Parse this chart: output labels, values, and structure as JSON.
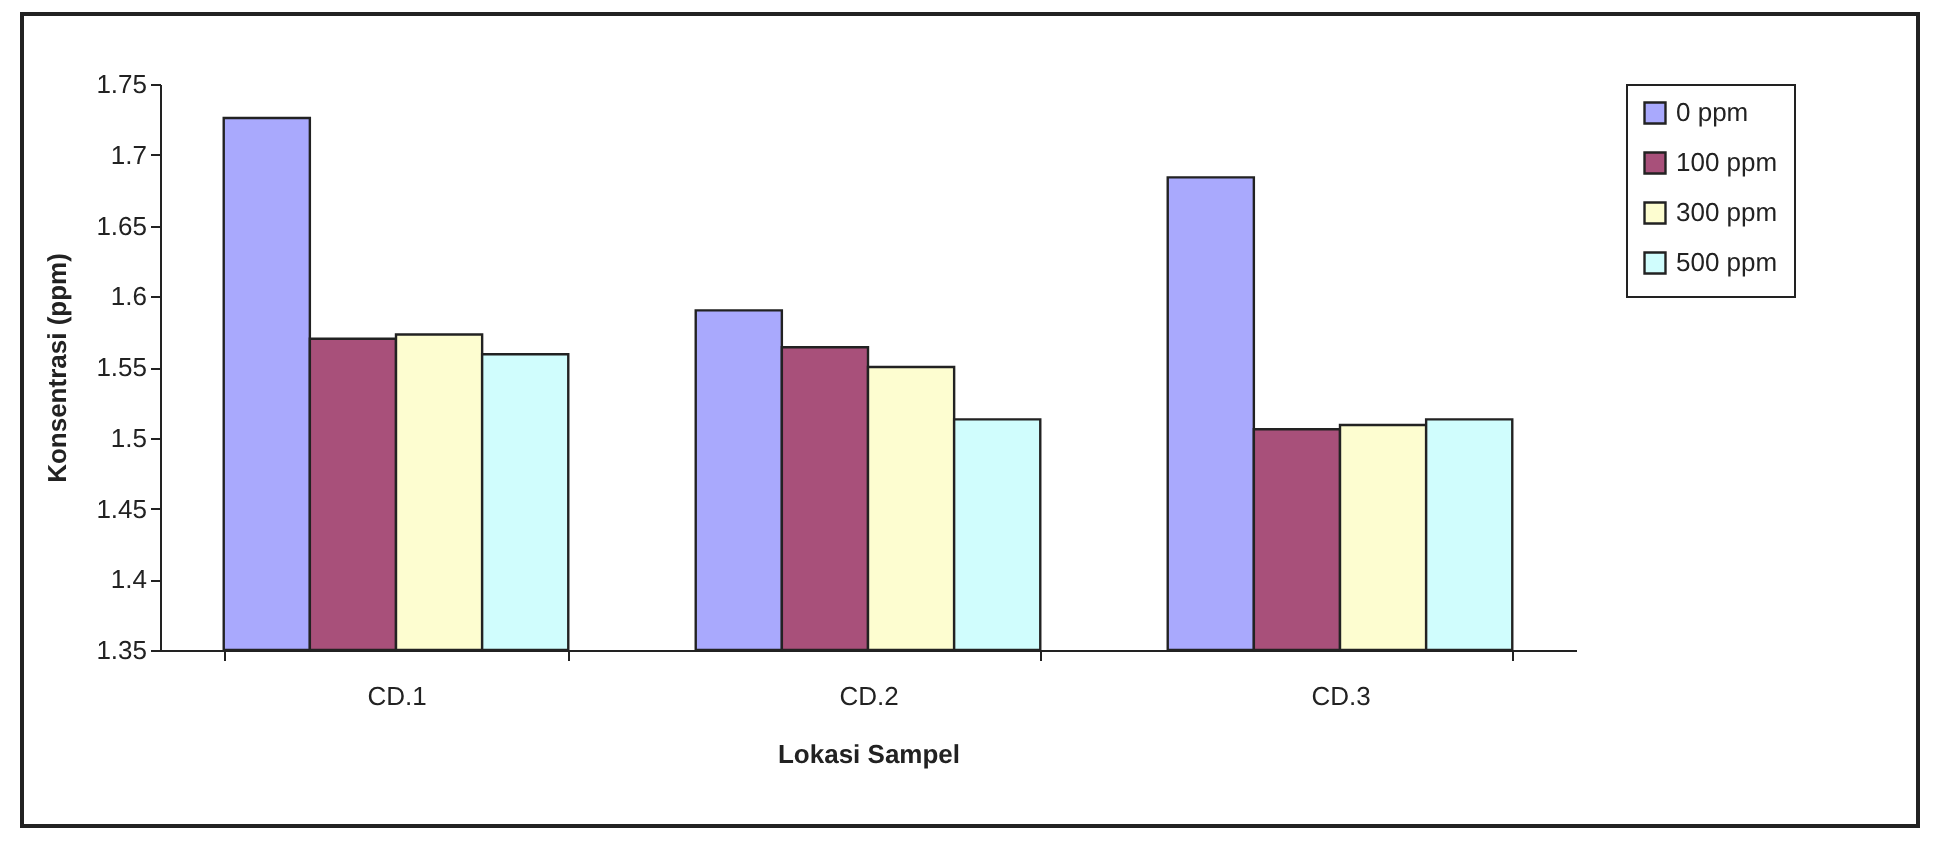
{
  "chart_data": {
    "type": "bar",
    "xlabel": "Lokasi Sampel",
    "ylabel": "Konsentrasi (ppm)",
    "categories": [
      "CD.1",
      "CD.2",
      "CD.3"
    ],
    "series": [
      {
        "name": "0 ppm",
        "color": "#a9a9fd",
        "values": [
          1.726,
          1.59,
          1.684
        ]
      },
      {
        "name": "100 ppm",
        "color": "#a8507a",
        "values": [
          1.57,
          1.564,
          1.506
        ]
      },
      {
        "name": "300 ppm",
        "color": "#fdfdd0",
        "values": [
          1.573,
          1.55,
          1.509
        ]
      },
      {
        "name": "500 ppm",
        "color": "#d0fdfd",
        "values": [
          1.559,
          1.513,
          1.513
        ]
      }
    ],
    "ylim": [
      1.35,
      1.75
    ],
    "yticks": [
      1.35,
      1.4,
      1.45,
      1.5,
      1.55,
      1.6,
      1.65,
      1.7,
      1.75
    ],
    "grid": false,
    "legend": "right"
  }
}
